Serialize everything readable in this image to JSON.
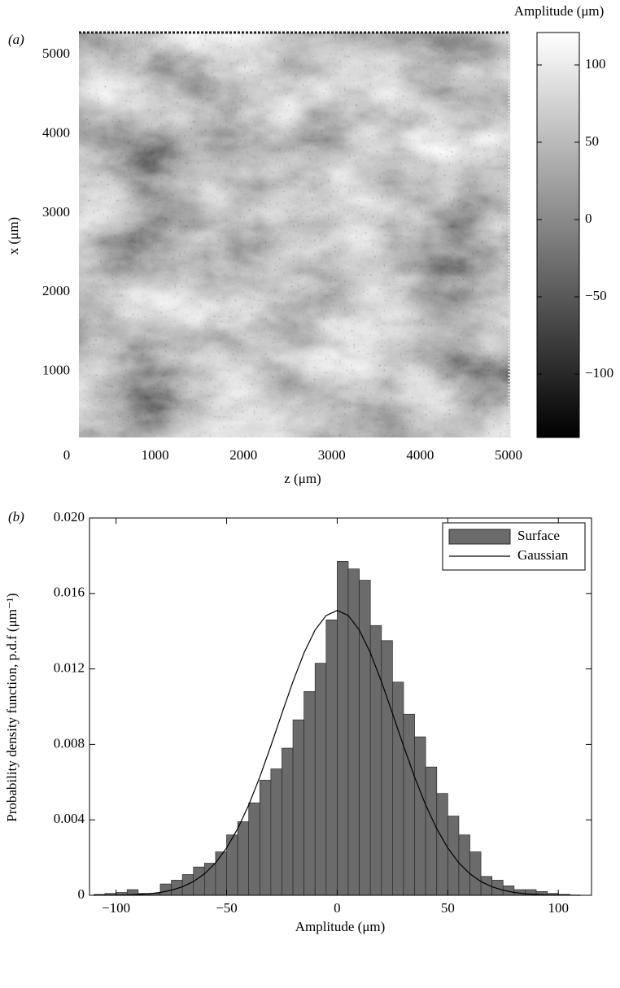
{
  "chart_data": [
    {
      "type": "heatmap",
      "panel_label": "(a)",
      "xlabel": "z (μm)",
      "ylabel": "x (μm)",
      "xlim": [
        0,
        5000
      ],
      "xticks": [
        0,
        1000,
        2000,
        3000,
        4000,
        5000
      ],
      "ylim": [
        165,
        5280
      ],
      "yticks": [
        1000,
        2000,
        3000,
        4000,
        5000
      ],
      "colorbar": {
        "label": "Amplitude (μm)",
        "lim": [
          -141,
          121
        ],
        "ticks": [
          100,
          50,
          0,
          {
            "value": -50,
            "label": "−50"
          },
          {
            "value": -100,
            "label": "−100"
          }
        ]
      }
    },
    {
      "type": "histogram",
      "panel_label": "(b)",
      "xlabel": "Amplitude (μm)",
      "ylabel": "Probability density function, p.d.f (μm⁻¹)",
      "bins": [
        -110,
        -105,
        -100,
        -95,
        -90,
        -85,
        -80,
        -75,
        -70,
        -65,
        -60,
        -55,
        -50,
        -45,
        -40,
        -35,
        -30,
        -25,
        -20,
        -15,
        -10,
        -5,
        0,
        5,
        10,
        15,
        20,
        25,
        30,
        35,
        40,
        45,
        50,
        55,
        60,
        65,
        70,
        75,
        80,
        85,
        90,
        95,
        100,
        105,
        110
      ],
      "series": [
        {
          "name": "Surface",
          "color": "#6b6b6b",
          "values": [
            5e-05,
            0.0001,
            0.00015,
            0.0003,
            0.0001,
            0.0001,
            0.0006,
            0.0008,
            0.0011,
            0.0015,
            0.0017,
            0.0023,
            0.0032,
            0.0039,
            0.0049,
            0.0061,
            0.0067,
            0.0078,
            0.0093,
            0.0108,
            0.0123,
            0.0146,
            0.0177,
            0.0173,
            0.0167,
            0.0143,
            0.0135,
            0.0113,
            0.0096,
            0.0084,
            0.0068,
            0.0054,
            0.0042,
            0.0032,
            0.0023,
            0.001,
            0.0008,
            0.0005,
            0.0003,
            0.0003,
            0.0002,
            0.0001,
            5e-05,
            0
          ]
        }
      ],
      "lines": [
        {
          "name": "Gaussian",
          "color": "#000000",
          "x": [
            -110,
            -105,
            -100,
            -95,
            -90,
            -85,
            -80,
            -75,
            -70,
            -65,
            -60,
            -55,
            -50,
            -45,
            -40,
            -35,
            -30,
            -25,
            -20,
            -15,
            -10,
            -5,
            0,
            5,
            10,
            15,
            20,
            25,
            30,
            35,
            40,
            45,
            50,
            55,
            60,
            65,
            70,
            75,
            80,
            85,
            90,
            95,
            100,
            105,
            110
          ],
          "values": [
            0,
            1e-05,
            1e-05,
            2e-05,
            5e-05,
            8e-05,
            0.00015,
            0.00027,
            0.00045,
            0.00073,
            0.00114,
            0.00172,
            0.00251,
            0.00353,
            0.00479,
            0.00627,
            0.00792,
            0.00964,
            0.01133,
            0.01285,
            0.01406,
            0.01483,
            0.0151,
            0.01483,
            0.01406,
            0.01285,
            0.01133,
            0.00964,
            0.00792,
            0.00627,
            0.00479,
            0.00353,
            0.00251,
            0.00172,
            0.00114,
            0.00073,
            0.00045,
            0.00027,
            0.00015,
            8e-05,
            5e-05,
            2e-05,
            1e-05,
            1e-05,
            0
          ]
        }
      ],
      "xlim": [
        -112,
        115
      ],
      "xticks": [
        {
          "value": -100,
          "label": "−100"
        },
        {
          "value": -50,
          "label": "−50"
        },
        0,
        50,
        100
      ],
      "ylim": [
        0,
        0.02
      ],
      "yticks": [
        0,
        0.004,
        0.008,
        0.012,
        0.016,
        {
          "value": 0.02,
          "label": "0.020"
        }
      ],
      "legend": "upper right"
    }
  ]
}
